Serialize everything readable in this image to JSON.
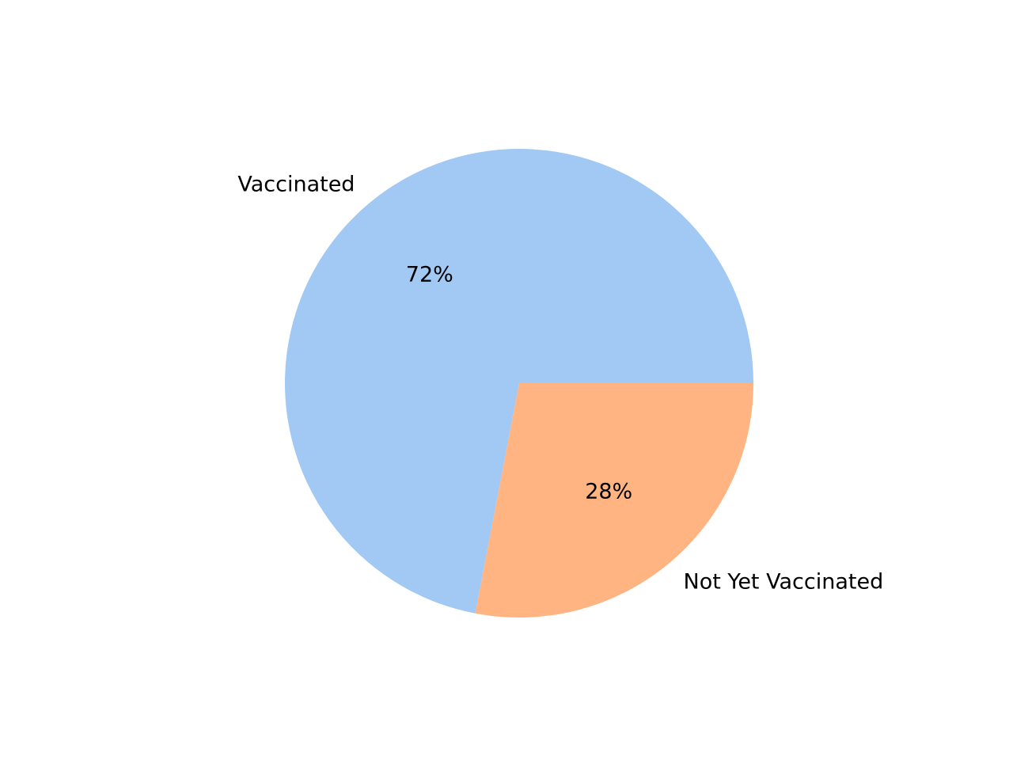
{
  "chart_data": {
    "type": "pie",
    "title": "",
    "slices": [
      {
        "label": "Vaccinated",
        "value": 72,
        "pct_label": "72%",
        "color": "#a1c9f4"
      },
      {
        "label": "Not Yet Vaccinated",
        "value": 28,
        "pct_label": "28%",
        "color": "#ffb482"
      }
    ],
    "start_angle_deg": 0,
    "direction": "counterclockwise",
    "legend": "none"
  }
}
